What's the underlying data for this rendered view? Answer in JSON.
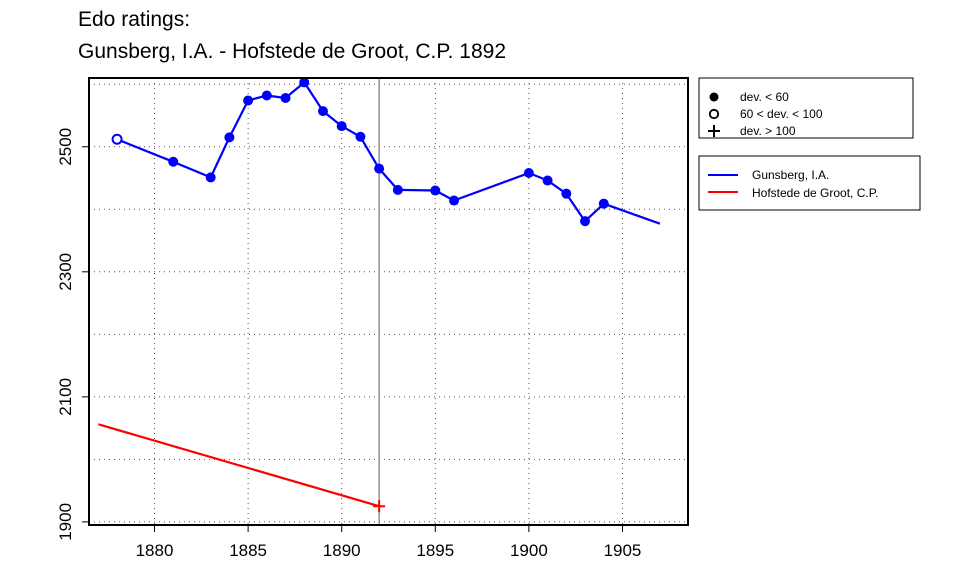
{
  "chart_data": {
    "type": "line",
    "title": "Edo ratings:",
    "subtitle": "Gunsberg, I.A. - Hofstede de Groot, C.P. 1892",
    "xlim": [
      1876.5,
      1908.5
    ],
    "ylim": [
      1895,
      2610
    ],
    "x_ticks": [
      1880,
      1885,
      1890,
      1895,
      1900,
      1905
    ],
    "y_ticks": [
      1900,
      2100,
      2300,
      2500
    ],
    "y_minor_grid": [
      2000,
      2200,
      2400,
      2600
    ],
    "grid": true,
    "vertical_marker_x": 1892,
    "legend_placement": "right, outside plot",
    "deviation_legend": [
      {
        "symbol": "filled-circle",
        "label": "dev. < 60"
      },
      {
        "symbol": "open-circle",
        "label": "60 < dev. < 100"
      },
      {
        "symbol": "plus",
        "label": "dev. > 100"
      }
    ],
    "series": [
      {
        "name": "Gunsberg, I.A.",
        "color": "#0000ff",
        "points": [
          {
            "x": 1878,
            "y": 2512,
            "marker": "open"
          },
          {
            "x": 1881,
            "y": 2476,
            "marker": "filled"
          },
          {
            "x": 1883,
            "y": 2451,
            "marker": "filled"
          },
          {
            "x": 1884,
            "y": 2515,
            "marker": "filled"
          },
          {
            "x": 1885,
            "y": 2574,
            "marker": "filled"
          },
          {
            "x": 1886,
            "y": 2582,
            "marker": "filled"
          },
          {
            "x": 1887,
            "y": 2578,
            "marker": "filled"
          },
          {
            "x": 1888,
            "y": 2603,
            "marker": "filled"
          },
          {
            "x": 1889,
            "y": 2557,
            "marker": "filled"
          },
          {
            "x": 1890,
            "y": 2533,
            "marker": "filled"
          },
          {
            "x": 1891,
            "y": 2516,
            "marker": "filled"
          },
          {
            "x": 1892,
            "y": 2465,
            "marker": "filled"
          },
          {
            "x": 1893,
            "y": 2431,
            "marker": "filled"
          },
          {
            "x": 1895,
            "y": 2430,
            "marker": "filled"
          },
          {
            "x": 1896,
            "y": 2414,
            "marker": "filled"
          },
          {
            "x": 1900,
            "y": 2458,
            "marker": "filled"
          },
          {
            "x": 1901,
            "y": 2446,
            "marker": "filled"
          },
          {
            "x": 1902,
            "y": 2425,
            "marker": "filled"
          },
          {
            "x": 1903,
            "y": 2381,
            "marker": "filled"
          },
          {
            "x": 1904,
            "y": 2409,
            "marker": "filled"
          },
          {
            "x": 1907,
            "y": 2377,
            "marker": "none"
          }
        ]
      },
      {
        "name": "Hofstede de Groot, C.P.",
        "color": "#ff0000",
        "points": [
          {
            "x": 1877,
            "y": 2056,
            "marker": "none"
          },
          {
            "x": 1892,
            "y": 1925,
            "marker": "plus"
          }
        ]
      }
    ]
  }
}
